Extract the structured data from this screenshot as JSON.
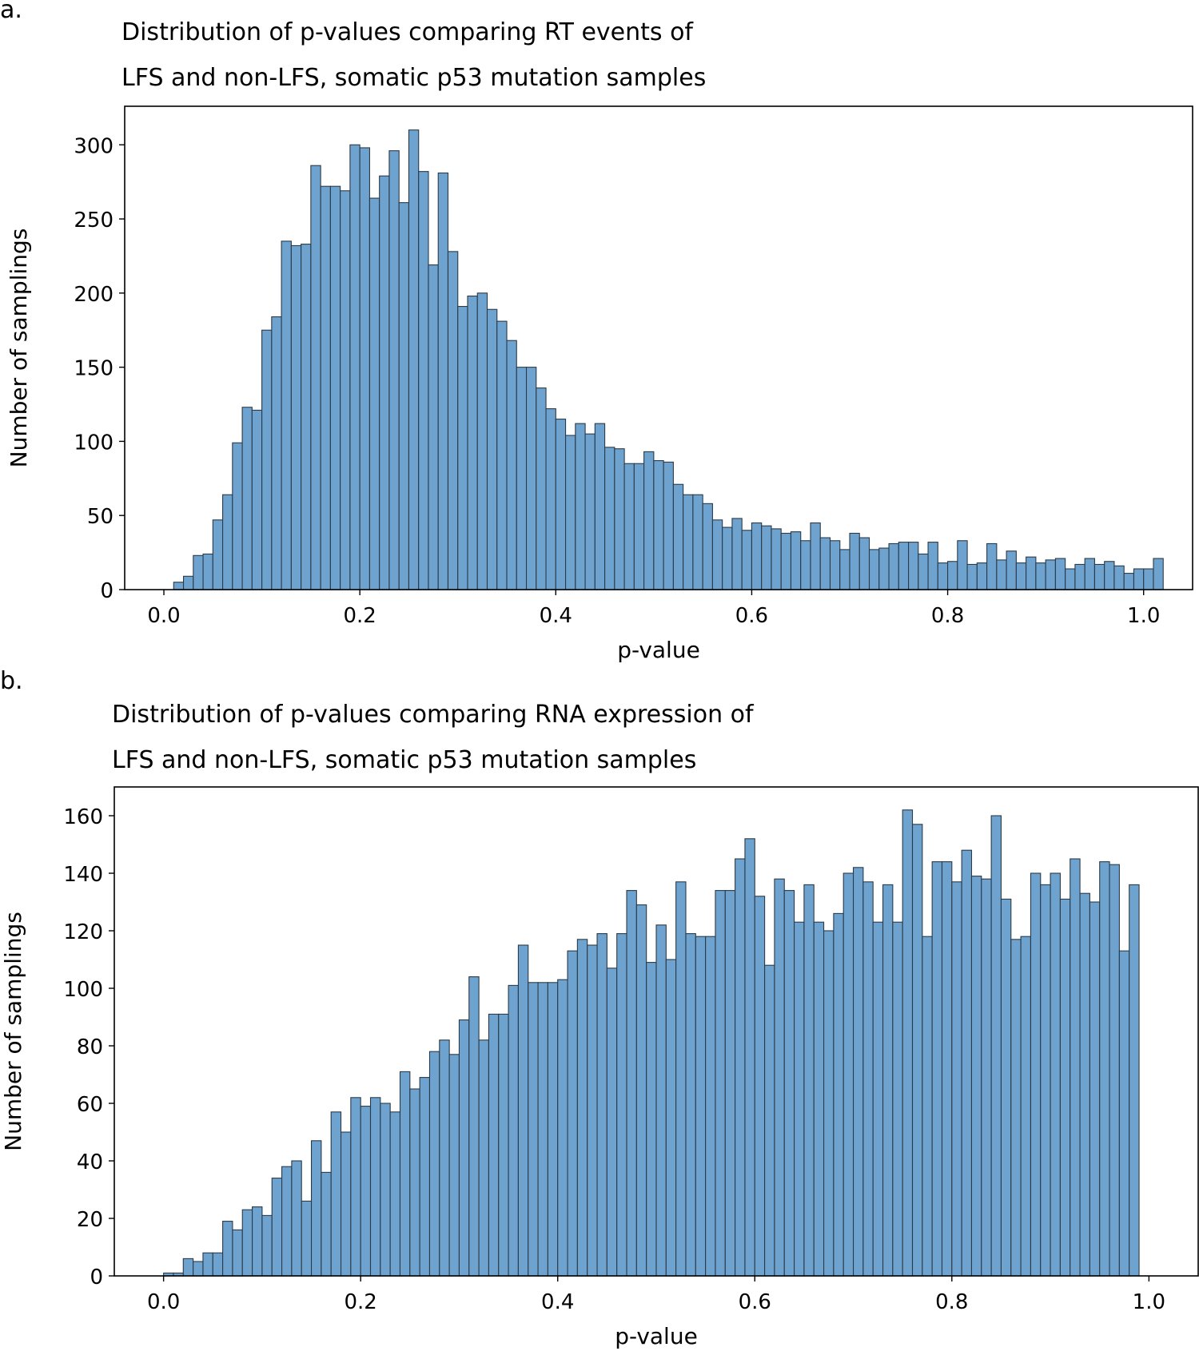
{
  "panels": [
    {
      "panel_label": "a.",
      "title_line1": "Distribution of p-values comparing RT events of",
      "title_line2": "LFS and non-LFS, somatic p53 mutation samples"
    },
    {
      "panel_label": "b.",
      "title_line1": "Distribution of p-values comparing RNA expression of",
      "title_line2": "LFS and non-LFS, somatic p53 mutation samples"
    }
  ],
  "colors": {
    "bar_fill": "#6fa3cf",
    "bar_edge": "#2b3a47",
    "axes": "#000000"
  },
  "chart_data": [
    {
      "type": "bar",
      "title": "Distribution of p-values comparing RT events of LFS and non-LFS, somatic p53 mutation samples",
      "xlabel": "p-value",
      "ylabel": "Number of samplings",
      "xlim": [
        -0.04,
        1.05
      ],
      "ylim": [
        0,
        326
      ],
      "xticks": [
        0.0,
        0.2,
        0.4,
        0.6,
        0.8,
        1.0
      ],
      "xtick_labels": [
        "0.0",
        "0.2",
        "0.4",
        "0.6",
        "0.8",
        "1.0"
      ],
      "yticks": [
        0,
        50,
        100,
        150,
        200,
        250,
        300
      ],
      "ytick_labels": [
        "0",
        "50",
        "100",
        "150",
        "200",
        "250",
        "300"
      ],
      "bin_width": 0.01,
      "x_start": 0.0,
      "values": [
        0,
        5,
        9,
        23,
        24,
        47,
        64,
        99,
        123,
        121,
        175,
        184,
        235,
        232,
        233,
        286,
        272,
        272,
        269,
        300,
        298,
        264,
        279,
        296,
        261,
        310,
        282,
        219,
        281,
        228,
        191,
        198,
        200,
        189,
        181,
        168,
        150,
        150,
        136,
        122,
        115,
        104,
        112,
        105,
        112,
        96,
        95,
        85,
        85,
        93,
        87,
        86,
        71,
        64,
        64,
        58,
        47,
        42,
        48,
        40,
        45,
        43,
        41,
        38,
        39,
        33,
        45,
        35,
        33,
        27,
        38,
        35,
        27,
        28,
        31,
        32,
        32,
        24,
        32,
        18,
        19,
        33,
        17,
        18,
        31,
        20,
        26,
        18,
        22,
        18,
        20,
        21,
        14,
        17,
        21,
        17,
        19,
        16,
        11,
        14,
        14,
        21
      ]
    },
    {
      "type": "bar",
      "title": "Distribution of p-values comparing RNA expression of LFS and non-LFS, somatic p53 mutation samples",
      "xlabel": "p-value",
      "ylabel": "Number of samplings",
      "xlim": [
        -0.05,
        1.05
      ],
      "ylim": [
        0,
        170
      ],
      "xticks": [
        0.0,
        0.2,
        0.4,
        0.6,
        0.8,
        1.0
      ],
      "xtick_labels": [
        "0.0",
        "0.2",
        "0.4",
        "0.6",
        "0.8",
        "1.0"
      ],
      "yticks": [
        0,
        20,
        40,
        60,
        80,
        100,
        120,
        140,
        160
      ],
      "ytick_labels": [
        "0",
        "20",
        "40",
        "60",
        "80",
        "100",
        "120",
        "140",
        "160"
      ],
      "bin_width": 0.01,
      "x_start": 0.0,
      "values": [
        1,
        1,
        6,
        5,
        8,
        8,
        19,
        16,
        23,
        24,
        21,
        34,
        38,
        40,
        26,
        47,
        36,
        57,
        50,
        62,
        59,
        62,
        60,
        57,
        71,
        65,
        69,
        78,
        82,
        77,
        89,
        104,
        82,
        91,
        91,
        101,
        115,
        102,
        102,
        102,
        103,
        113,
        117,
        115,
        119,
        107,
        119,
        134,
        129,
        109,
        122,
        110,
        137,
        119,
        118,
        118,
        134,
        134,
        145,
        152,
        132,
        108,
        138,
        134,
        123,
        136,
        123,
        120,
        126,
        140,
        142,
        137,
        123,
        136,
        123,
        162,
        157,
        118,
        144,
        144,
        137,
        148,
        139,
        138,
        160,
        131,
        117,
        118,
        140,
        136,
        140,
        131,
        145,
        133,
        130,
        144,
        143,
        113,
        136
      ]
    }
  ]
}
